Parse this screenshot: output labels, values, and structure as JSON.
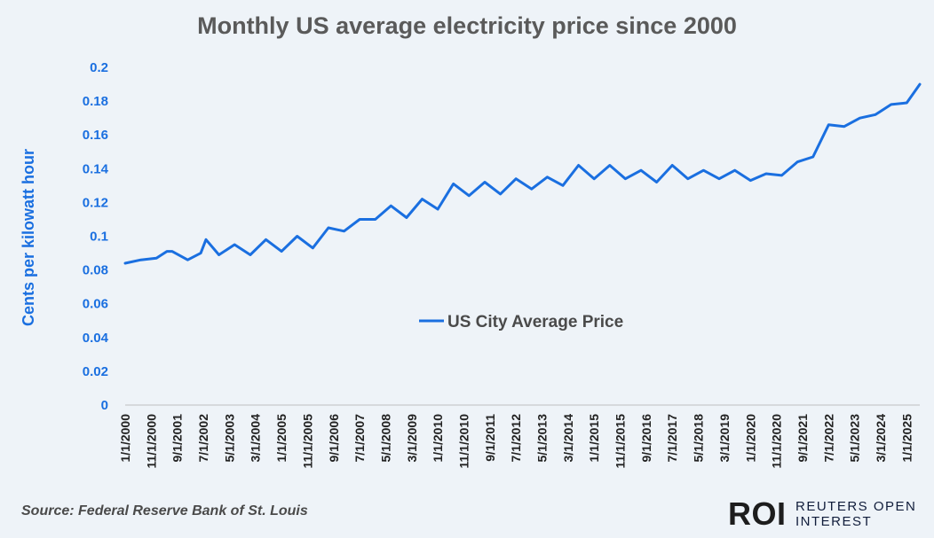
{
  "chart_data": {
    "type": "line",
    "title": "Monthly US average electricity price  since 2000",
    "ylabel": "Cents per kilowatt hour",
    "xlabel": "",
    "ylim": [
      0,
      0.2
    ],
    "y_ticks": [
      "0",
      "0.02",
      "0.04",
      "0.06",
      "0.08",
      "0.1",
      "0.12",
      "0.14",
      "0.16",
      "0.18",
      "0.2"
    ],
    "x_range": [
      "1/1/2000",
      "6/1/2025"
    ],
    "x_tick_labels": [
      "1/1/2000",
      "11/1/2000",
      "9/1/2001",
      "7/1/2002",
      "5/1/2003",
      "3/1/2004",
      "1/1/2005",
      "11/1/2005",
      "9/1/2006",
      "7/1/2007",
      "5/1/2008",
      "3/1/2009",
      "1/1/2010",
      "11/1/2010",
      "9/1/2011",
      "7/1/2012",
      "5/1/2013",
      "3/1/2014",
      "1/1/2015",
      "11/1/2015",
      "9/1/2016",
      "7/1/2017",
      "5/1/2018",
      "3/1/2019",
      "1/1/2020",
      "11/1/2020",
      "9/1/2021",
      "7/1/2022",
      "5/1/2023",
      "3/1/2024",
      "1/1/2025"
    ],
    "grid": false,
    "legend_position": "center",
    "series": [
      {
        "name": "US City Average Price",
        "color": "#1a6fe0",
        "points": [
          [
            "1/1/2000",
            0.084
          ],
          [
            "7/1/2000",
            0.086
          ],
          [
            "1/1/2001",
            0.087
          ],
          [
            "5/1/2001",
            0.091
          ],
          [
            "7/1/2001",
            0.091
          ],
          [
            "1/1/2002",
            0.086
          ],
          [
            "6/1/2002",
            0.09
          ],
          [
            "8/1/2002",
            0.098
          ],
          [
            "1/1/2003",
            0.089
          ],
          [
            "7/1/2003",
            0.095
          ],
          [
            "1/1/2004",
            0.089
          ],
          [
            "7/1/2004",
            0.098
          ],
          [
            "1/1/2005",
            0.091
          ],
          [
            "7/1/2005",
            0.1
          ],
          [
            "1/1/2006",
            0.093
          ],
          [
            "7/1/2006",
            0.105
          ],
          [
            "1/1/2007",
            0.103
          ],
          [
            "7/1/2007",
            0.11
          ],
          [
            "1/1/2008",
            0.11
          ],
          [
            "7/1/2008",
            0.118
          ],
          [
            "1/1/2009",
            0.111
          ],
          [
            "7/1/2009",
            0.122
          ],
          [
            "1/1/2010",
            0.116
          ],
          [
            "7/1/2010",
            0.131
          ],
          [
            "1/1/2011",
            0.124
          ],
          [
            "7/1/2011",
            0.132
          ],
          [
            "1/1/2012",
            0.125
          ],
          [
            "7/1/2012",
            0.134
          ],
          [
            "1/1/2013",
            0.128
          ],
          [
            "7/1/2013",
            0.135
          ],
          [
            "1/1/2014",
            0.13
          ],
          [
            "7/1/2014",
            0.142
          ],
          [
            "1/1/2015",
            0.134
          ],
          [
            "7/1/2015",
            0.142
          ],
          [
            "1/1/2016",
            0.134
          ],
          [
            "7/1/2016",
            0.139
          ],
          [
            "1/1/2017",
            0.132
          ],
          [
            "7/1/2017",
            0.142
          ],
          [
            "1/1/2018",
            0.134
          ],
          [
            "7/1/2018",
            0.139
          ],
          [
            "1/1/2019",
            0.134
          ],
          [
            "7/1/2019",
            0.139
          ],
          [
            "1/1/2020",
            0.133
          ],
          [
            "7/1/2020",
            0.137
          ],
          [
            "1/1/2021",
            0.136
          ],
          [
            "7/1/2021",
            0.144
          ],
          [
            "1/1/2022",
            0.147
          ],
          [
            "7/1/2022",
            0.166
          ],
          [
            "1/1/2023",
            0.165
          ],
          [
            "7/1/2023",
            0.17
          ],
          [
            "1/1/2024",
            0.172
          ],
          [
            "7/1/2024",
            0.178
          ],
          [
            "1/1/2025",
            0.179
          ],
          [
            "6/1/2025",
            0.19
          ]
        ]
      }
    ]
  },
  "footer": {
    "source": "Source: Federal Reserve Bank of St. Louis",
    "logo_mark": "ROI",
    "logo_line1": "REUTERS OPEN",
    "logo_line2": "INTEREST"
  }
}
